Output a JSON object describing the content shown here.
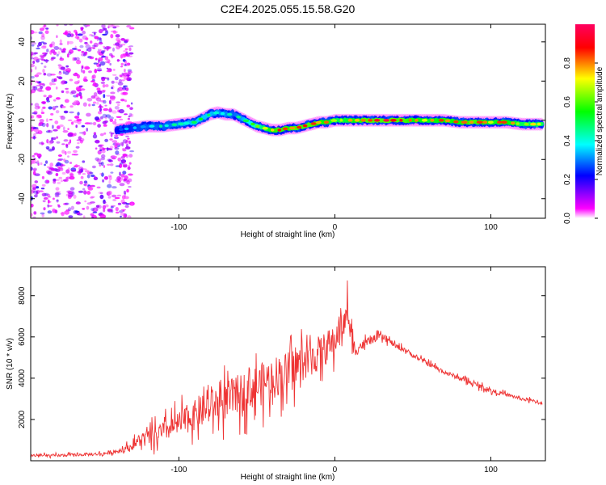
{
  "figure_title": "C2E4.2025.055.15.58.G20",
  "chart_data": [
    {
      "type": "heatmap",
      "title": "",
      "xlabel": "Height of straight line (km)",
      "ylabel": "Frequency (Hz)",
      "xlim": [
        -195,
        135
      ],
      "ylim": [
        -50,
        49
      ],
      "xticks": [
        -100,
        0,
        100
      ],
      "yticks": [
        -40,
        -20,
        0,
        20,
        40
      ],
      "grid": false,
      "noise_region_x": [
        -195,
        -130
      ],
      "ridge": {
        "x": [
          -140,
          -130,
          -120,
          -110,
          -100,
          -90,
          -80,
          -75,
          -70,
          -65,
          -60,
          -55,
          -50,
          -45,
          -40,
          -35,
          -30,
          -25,
          -20,
          -15,
          -10,
          -5,
          0,
          10,
          20,
          30,
          40,
          50,
          60,
          70,
          80,
          90,
          100,
          110,
          120,
          133
        ],
        "y": [
          -5,
          -4,
          -3,
          -3,
          -2,
          -1,
          3,
          4,
          3,
          3,
          1,
          -1,
          -3,
          -4,
          -5,
          -5,
          -4,
          -4,
          -3,
          -2,
          -1,
          -1,
          0,
          0,
          0,
          0,
          0,
          0,
          0,
          0,
          -1,
          -1,
          -1,
          -1,
          -2,
          -2
        ],
        "amplitude": [
          0.3,
          0.35,
          0.4,
          0.4,
          0.45,
          0.5,
          0.5,
          0.45,
          0.45,
          0.4,
          0.45,
          0.55,
          0.6,
          0.7,
          0.8,
          0.85,
          0.8,
          0.85,
          0.9,
          0.85,
          0.8,
          0.8,
          0.7,
          0.75,
          0.85,
          0.9,
          0.9,
          0.8,
          0.75,
          0.8,
          0.8,
          0.85,
          0.75,
          0.8,
          0.7,
          0.7
        ]
      },
      "colorbar": {
        "label": "Normalized spectral amplitude",
        "range": [
          0.0,
          1.0
        ],
        "ticks": [
          0.0,
          0.2,
          0.4,
          0.6,
          0.8
        ],
        "colormap": [
          "#ff00ff",
          "#0000ff",
          "#00ffff",
          "#00ff00",
          "#ffff00",
          "#ff0000",
          "#ff0060"
        ]
      }
    },
    {
      "type": "line",
      "title": "",
      "xlabel": "Height of straight line (km)",
      "ylabel": "SNR (10 * v/v)",
      "xlim": [
        -195,
        135
      ],
      "ylim": [
        0,
        9400
      ],
      "xticks": [
        -100,
        0,
        100
      ],
      "yticks": [
        2000,
        4000,
        6000,
        8000
      ],
      "grid": false,
      "series": [
        {
          "name": "",
          "color": "#ee3333",
          "x": [
            -195,
            -180,
            -170,
            -160,
            -150,
            -140,
            -130,
            -125,
            -120,
            -115,
            -110,
            -105,
            -100,
            -95,
            -90,
            -85,
            -80,
            -75,
            -70,
            -65,
            -60,
            -55,
            -50,
            -45,
            -40,
            -35,
            -30,
            -25,
            -20,
            -15,
            -10,
            -5,
            0,
            2,
            4,
            6,
            8,
            10,
            12,
            15,
            20,
            25,
            30,
            35,
            40,
            45,
            50,
            60,
            70,
            80,
            90,
            100,
            110,
            120,
            133
          ],
          "y": [
            250,
            250,
            280,
            300,
            330,
            450,
            700,
            1000,
            1100,
            1200,
            1400,
            1600,
            1800,
            2000,
            2200,
            2400,
            2600,
            2800,
            2900,
            3100,
            3300,
            3500,
            3600,
            3800,
            4000,
            4200,
            4300,
            4600,
            4800,
            5000,
            5200,
            5500,
            5700,
            6300,
            6800,
            6500,
            7400,
            6200,
            5400,
            5500,
            5700,
            5900,
            6000,
            5800,
            5500,
            5400,
            5100,
            4700,
            4300,
            4000,
            3700,
            3400,
            3200,
            3000,
            2800
          ],
          "spread": [
            150,
            150,
            150,
            150,
            180,
            250,
            400,
            800,
            900,
            1000,
            1100,
            1200,
            1300,
            1500,
            1600,
            1700,
            1800,
            1900,
            2000,
            2100,
            2100,
            2200,
            2300,
            2300,
            2300,
            2200,
            2200,
            2100,
            2000,
            1900,
            1900,
            1800,
            1800,
            1600,
            1500,
            1500,
            1500,
            1400,
            1200,
            700,
            500,
            400,
            350,
            300,
            300,
            250,
            250,
            250,
            250,
            250,
            250,
            250,
            200,
            200,
            200
          ]
        }
      ]
    }
  ]
}
